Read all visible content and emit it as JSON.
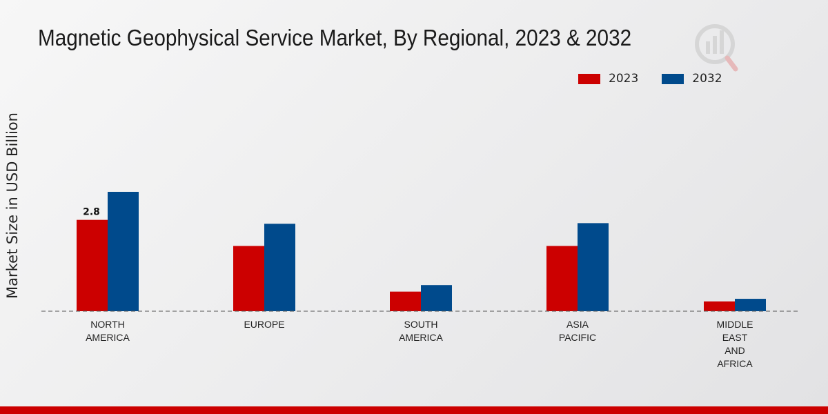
{
  "title": "Magnetic Geophysical Service Market, By Regional, 2023 & 2032",
  "colors": {
    "series_2023": "#cc0000",
    "series_2032": "#004a8c",
    "accent_bar": "#cc0000"
  },
  "chart_data": {
    "type": "bar",
    "title": "Magnetic Geophysical Service Market, By Regional, 2023 & 2032",
    "xlabel": "",
    "ylabel": "Market Size in USD Billion",
    "ylim": [
      0,
      8
    ],
    "grid": false,
    "legend_position": "top-right",
    "categories": [
      "NORTH\nAMERICA",
      "EUROPE",
      "SOUTH\nAMERICA",
      "ASIA\nPACIFIC",
      "MIDDLE\nEAST\nAND\nAFRICA"
    ],
    "series": [
      {
        "name": "2023",
        "color": "#cc0000",
        "values": [
          2.8,
          2.0,
          0.6,
          2.0,
          0.3
        ]
      },
      {
        "name": "2032",
        "color": "#004a8c",
        "values": [
          3.66,
          2.68,
          0.8,
          2.7,
          0.38
        ]
      }
    ],
    "annotations": [
      {
        "series": "2023",
        "category_index": 0,
        "text": "2.8"
      }
    ]
  }
}
